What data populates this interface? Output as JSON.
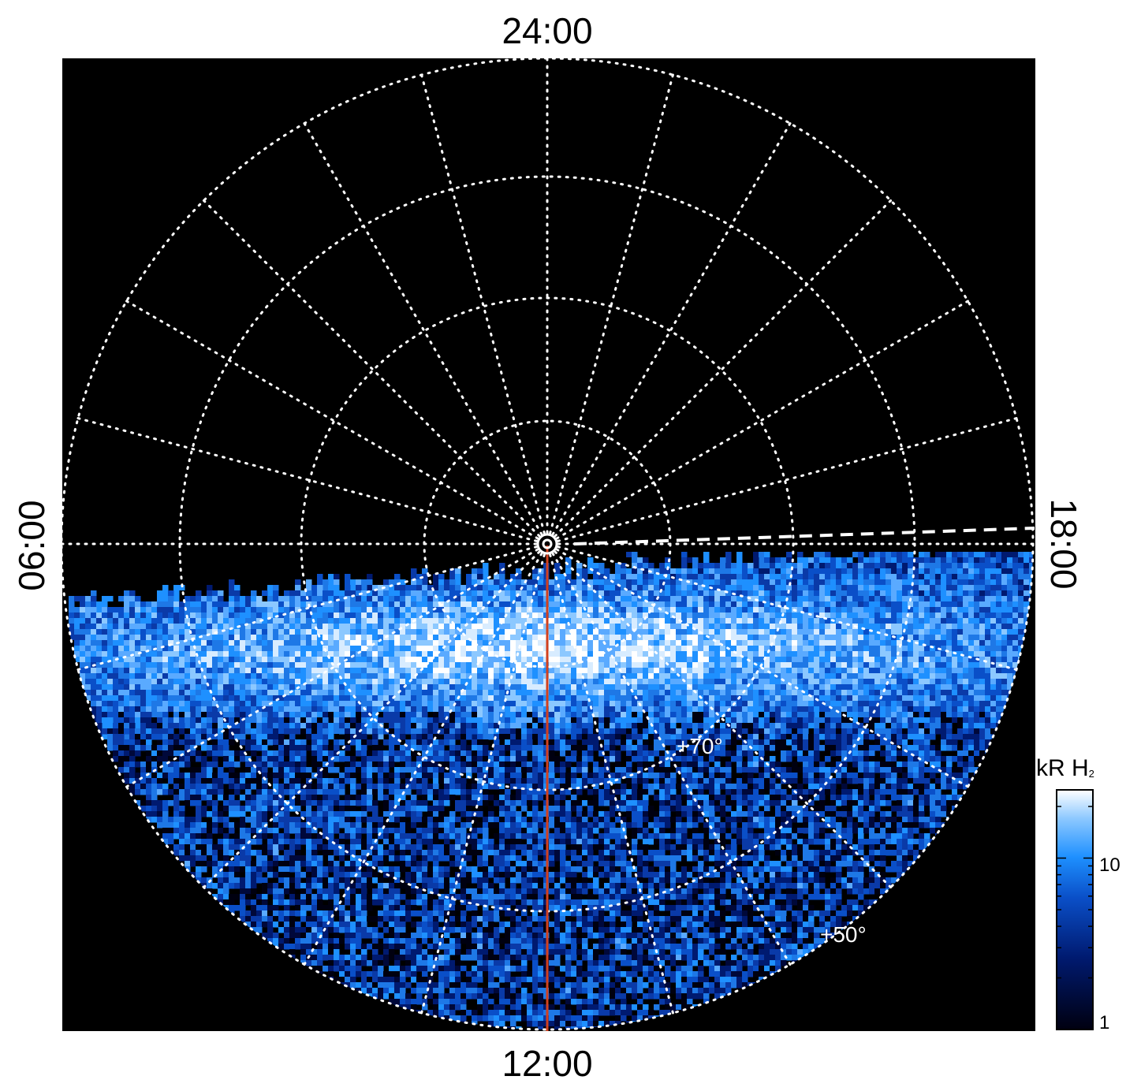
{
  "local_time_labels": {
    "top": "24:00",
    "bottom": "12:00",
    "left": "06:00",
    "right": "18:00"
  },
  "latitude_labels": [
    "+70°",
    "+50°"
  ],
  "colorbar": {
    "unit": "kR H",
    "unit_subscript": "2",
    "ticks": [
      "10",
      "1"
    ],
    "scale": "log",
    "range": [
      1,
      25
    ],
    "colors": [
      "#000010",
      "#001a70",
      "#0a4fc8",
      "#1e90ff",
      "#8cc8ff",
      "#ffffff"
    ]
  },
  "colors": {
    "background": "#000000",
    "grid": "#ffffff",
    "central_meridian": "#d2401e"
  }
}
